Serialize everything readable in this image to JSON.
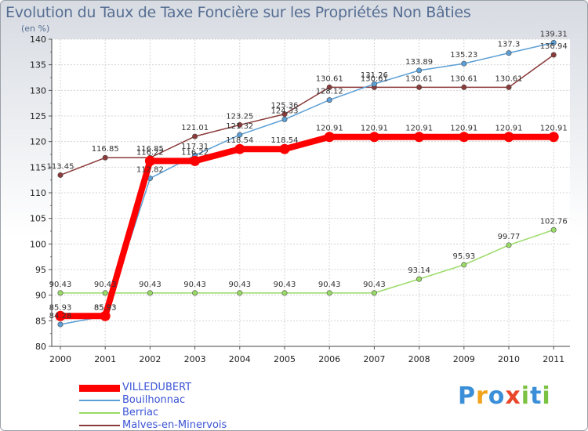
{
  "brand": {
    "text": "Proxiti",
    "letters": [
      {
        "ch": "P",
        "color": "#3a8fd8"
      },
      {
        "ch": "r",
        "color": "#f2a21b"
      },
      {
        "ch": "o",
        "color": "#3a8fd8"
      },
      {
        "ch": "x",
        "color": "#e8472a"
      },
      {
        "ch": "i",
        "color": "#7cc242"
      },
      {
        "ch": "t",
        "color": "#3a8fd8"
      },
      {
        "ch": "i",
        "color": "#7cc242"
      }
    ]
  },
  "chart_data": {
    "type": "line",
    "title": "Evolution du Taux de Taxe Foncière sur les Propriétés Non Bâties",
    "ylabel": "(en %)",
    "xlabel": "",
    "x": [
      "2000",
      "2001",
      "2002",
      "2003",
      "2004",
      "2005",
      "2006",
      "2007",
      "2008",
      "2009",
      "2010",
      "2011"
    ],
    "ylim": [
      80,
      140
    ],
    "yticks": [
      80,
      85,
      90,
      95,
      100,
      105,
      110,
      115,
      120,
      125,
      130,
      135,
      140
    ],
    "grid": true,
    "legend_position": "bottom-left",
    "series": [
      {
        "name": "VILLEDUBERT",
        "color": "#ff0000",
        "values": [
          85.93,
          85.93,
          116.22,
          116.22,
          118.54,
          118.54,
          120.91,
          120.91,
          120.91,
          120.91,
          120.91,
          120.91
        ],
        "labels": [
          "85.93",
          "85.93",
          "116.22",
          "116.22",
          "118.54",
          "118.54",
          "120.91",
          "120.91",
          "120.91",
          "120.91",
          "120.91",
          "120.91"
        ]
      },
      {
        "name": "Bouilhonnac",
        "color": "#5b9fd6",
        "values": [
          84.28,
          85.93,
          112.82,
          117.31,
          121.32,
          124.33,
          128.12,
          131.26,
          133.89,
          135.23,
          137.3,
          139.31
        ],
        "labels": [
          "84.28",
          "85.93",
          "112.82",
          "117.31",
          "121.32",
          "124.33",
          "128.12",
          "131.26",
          "133.89",
          "135.23",
          "137.3",
          "139.31"
        ]
      },
      {
        "name": "Berriac",
        "color": "#99db66",
        "values": [
          90.43,
          90.43,
          90.43,
          90.43,
          90.43,
          90.43,
          90.43,
          90.43,
          93.14,
          95.93,
          99.77,
          102.76
        ],
        "labels": [
          "90.43",
          "90.43",
          "90.43",
          "90.43",
          "90.43",
          "90.43",
          "90.43",
          "90.43",
          "93.14",
          "95.93",
          "99.77",
          "102.76"
        ]
      },
      {
        "name": "Malves-en-Minervois",
        "color": "#8b3a3a",
        "values": [
          113.45,
          116.85,
          116.85,
          121.01,
          123.25,
          125.36,
          130.61,
          130.61,
          130.61,
          130.61,
          130.61,
          136.94
        ],
        "labels": [
          "113.45",
          "116.85",
          "116.85",
          "121.01",
          "123.25",
          "125.36",
          "130.61",
          "130.61",
          "130.61",
          "130.61",
          "130.61",
          "136.94"
        ]
      }
    ]
  }
}
